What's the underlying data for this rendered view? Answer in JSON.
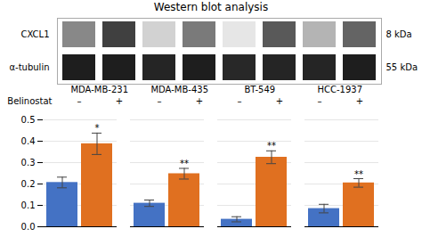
{
  "chart_data": [
    {
      "type": "heatmap",
      "title": "Western blot analysis",
      "y": [
        "CXCL1",
        "α-tubulin"
      ],
      "y_right_labels": [
        "8 kDa",
        "55 kDa"
      ],
      "groups": [
        "MDA-MB-231",
        "MDA-MB-435",
        "BT-549",
        "HCC-1937"
      ],
      "x_label": "Belinostat",
      "x": [
        "–",
        "+",
        "–",
        "+",
        "–",
        "+",
        "–",
        "+"
      ],
      "values": [
        [
          0.55,
          0.8,
          0.28,
          0.6,
          0.18,
          0.72,
          0.4,
          0.68
        ],
        [
          0.9,
          0.9,
          0.88,
          0.9,
          0.87,
          0.88,
          0.88,
          0.9
        ]
      ]
    },
    {
      "type": "bar",
      "categories": [
        null,
        null,
        null,
        null
      ],
      "series": [
        {
          "color": "#4472C4",
          "values": [
            0.207,
            0.11,
            0.035,
            0.085
          ],
          "errors": [
            0.025,
            0.015,
            0.012,
            0.02
          ]
        },
        {
          "color": "#E07020",
          "values": [
            0.388,
            0.248,
            0.325,
            0.205
          ],
          "errors": [
            0.05,
            0.025,
            0.03,
            0.02
          ],
          "annotations": [
            "*",
            "**",
            "**",
            "**"
          ]
        }
      ],
      "ylim": [
        0,
        0.5
      ],
      "yticks": [
        {
          "value": 0,
          "label": "0.0"
        },
        0.1,
        0.2,
        0.3,
        0.4,
        0.5
      ],
      "grid": true,
      "tick_labels": "y"
    }
  ]
}
